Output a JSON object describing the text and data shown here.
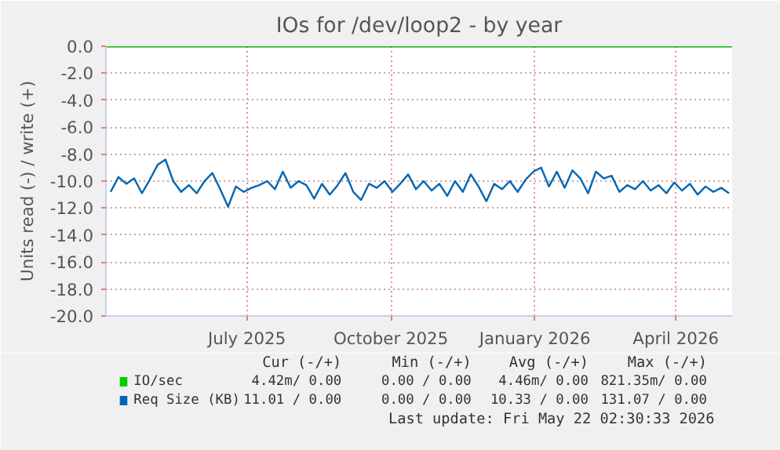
{
  "chart_data": {
    "type": "line",
    "title": "IOs for /dev/loop2 - by year",
    "ylabel": "Units read (-) / write (+)",
    "xlim": [
      "2025-04-17",
      "2026-05-22"
    ],
    "xticks": [
      {
        "value": "2025-07-16",
        "label": "July 2025"
      },
      {
        "value": "2025-10-16",
        "label": "October 2025"
      },
      {
        "value": "2026-01-16",
        "label": "January 2026"
      },
      {
        "value": "2026-04-16",
        "label": "April 2026"
      }
    ],
    "ylim": [
      -20,
      0
    ],
    "yticks": [
      {
        "value": -20,
        "label": "-20.0"
      },
      {
        "value": -18,
        "label": "-18.0"
      },
      {
        "value": -16,
        "label": "-16.0"
      },
      {
        "value": -14,
        "label": "-14.0"
      },
      {
        "value": -12,
        "label": "-12.0"
      },
      {
        "value": -10,
        "label": "-10.0"
      },
      {
        "value": -8,
        "label": "-8.0"
      },
      {
        "value": -6,
        "label": "-6.0"
      },
      {
        "value": -4,
        "label": "-4.0"
      },
      {
        "value": -2,
        "label": "-2.0"
      },
      {
        "value": 0,
        "label": "0.0"
      }
    ],
    "grid": true,
    "legend": "bottom",
    "line_style": "solid",
    "marker": "none",
    "ref_lines": [
      {
        "axis": "y",
        "value": 0,
        "color": "#000000"
      }
    ],
    "series": [
      {
        "name": "IO/sec",
        "color": "#00cc00",
        "x": [
          "2025-04-17",
          "2026-05-22"
        ],
        "values": [
          0,
          0
        ]
      },
      {
        "name": "Req Size (KB)",
        "color": "#0066b3",
        "x": [
          "2025-04-20",
          "2025-04-25",
          "2025-04-30",
          "2025-05-05",
          "2025-05-10",
          "2025-05-15",
          "2025-05-20",
          "2025-05-25",
          "2025-05-30",
          "2025-06-04",
          "2025-06-09",
          "2025-06-14",
          "2025-06-19",
          "2025-06-24",
          "2025-06-29",
          "2025-07-04",
          "2025-07-09",
          "2025-07-14",
          "2025-07-19",
          "2025-07-24",
          "2025-07-29",
          "2025-08-03",
          "2025-08-08",
          "2025-08-13",
          "2025-08-18",
          "2025-08-23",
          "2025-08-28",
          "2025-09-02",
          "2025-09-07",
          "2025-09-12",
          "2025-09-17",
          "2025-09-22",
          "2025-09-27",
          "2025-10-02",
          "2025-10-07",
          "2025-10-12",
          "2025-10-17",
          "2025-10-22",
          "2025-10-27",
          "2025-11-01",
          "2025-11-06",
          "2025-11-11",
          "2025-11-16",
          "2025-11-21",
          "2025-11-26",
          "2025-12-01",
          "2025-12-06",
          "2025-12-11",
          "2025-12-16",
          "2025-12-21",
          "2025-12-26",
          "2025-12-31",
          "2026-01-05",
          "2026-01-10",
          "2026-01-15",
          "2026-01-20",
          "2026-01-25",
          "2026-01-30",
          "2026-02-04",
          "2026-02-09",
          "2026-02-14",
          "2026-02-19",
          "2026-02-24",
          "2026-03-01",
          "2026-03-06",
          "2026-03-11",
          "2026-03-16",
          "2026-03-21",
          "2026-03-26",
          "2026-03-31",
          "2026-04-05",
          "2026-04-10",
          "2026-04-15",
          "2026-04-20",
          "2026-04-25",
          "2026-04-30",
          "2026-05-05",
          "2026-05-10",
          "2026-05-15",
          "2026-05-20"
        ],
        "values": [
          -10.8,
          -9.7,
          -10.2,
          -9.8,
          -10.9,
          -9.9,
          -8.8,
          -8.4,
          -10.0,
          -10.8,
          -10.3,
          -10.9,
          -10.0,
          -9.4,
          -10.6,
          -11.9,
          -10.4,
          -10.8,
          -10.5,
          -10.3,
          -10.0,
          -10.6,
          -9.3,
          -10.5,
          -10.0,
          -10.3,
          -11.3,
          -10.2,
          -11.0,
          -10.3,
          -9.4,
          -10.8,
          -11.4,
          -10.2,
          -10.5,
          -10.0,
          -10.8,
          -10.2,
          -9.5,
          -10.6,
          -10.0,
          -10.7,
          -10.2,
          -11.1,
          -10.0,
          -10.8,
          -9.5,
          -10.4,
          -11.5,
          -10.2,
          -10.6,
          -10.0,
          -10.8,
          -9.9,
          -9.3,
          -9.0,
          -10.4,
          -9.3,
          -10.5,
          -9.2,
          -9.8,
          -10.9,
          -9.3,
          -9.8,
          -9.6,
          -10.8,
          -10.3,
          -10.6,
          -10.0,
          -10.7,
          -10.3,
          -10.9,
          -10.1,
          -10.7,
          -10.2,
          -11.0,
          -10.4,
          -10.8,
          -10.5,
          -10.9
        ]
      }
    ],
    "annotations": [
      "Cur (-/+)",
      "Min (-/+)",
      "Avg (-/+)",
      "Max (-/+)",
      "4.42m/ 0.00",
      "0.00 / 0.00",
      "4.46m/ 0.00",
      "821.35m/ 0.00",
      "11.01 / 0.00",
      "0.00 / 0.00",
      "10.33 / 0.00",
      "131.07 / 0.00",
      "Last update: Fri May 22 02:30:33 2026"
    ]
  }
}
